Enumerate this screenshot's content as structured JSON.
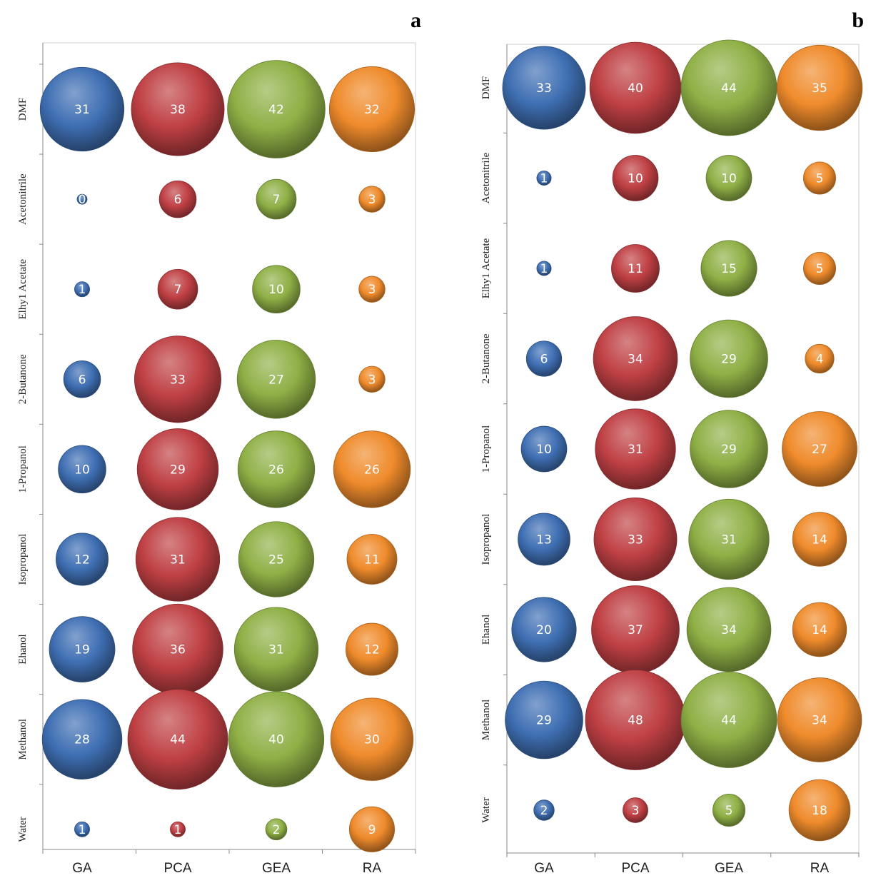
{
  "colors": {
    "GA": "#3f6fb3",
    "PCA": "#bf4044",
    "GEA": "#8fb046",
    "RA": "#ef8b2c"
  },
  "chart_data": [
    {
      "type": "bubble",
      "panel_label": "a",
      "categories": [
        "GA",
        "PCA",
        "GEA",
        "RA"
      ],
      "rows": [
        "DMF",
        "Acetonitrile",
        "Elhy1 Acetate",
        "2-Butanone",
        "1-Propanol",
        "Isopropanol",
        "Ehanol",
        "Methanol",
        "Water"
      ],
      "series": [
        {
          "name": "GA",
          "values": [
            31,
            0,
            1,
            6,
            10,
            12,
            19,
            28,
            1
          ]
        },
        {
          "name": "PCA",
          "values": [
            38,
            6,
            7,
            33,
            29,
            31,
            36,
            44,
            1
          ]
        },
        {
          "name": "GEA",
          "values": [
            42,
            7,
            10,
            27,
            26,
            25,
            31,
            40,
            2
          ]
        },
        {
          "name": "RA",
          "values": [
            32,
            3,
            3,
            3,
            26,
            11,
            12,
            30,
            9
          ]
        }
      ],
      "grid": false
    },
    {
      "type": "bubble",
      "panel_label": "b",
      "categories": [
        "GA",
        "PCA",
        "GEA",
        "RA"
      ],
      "rows": [
        "DMF",
        "Acetonitrile",
        "Elhy1 Acetate",
        "2-Butanone",
        "1-Propanol",
        "Isopropanol",
        "Ehanol",
        "Methanol",
        "Water"
      ],
      "series": [
        {
          "name": "GA",
          "values": [
            33,
            1,
            1,
            6,
            10,
            13,
            20,
            29,
            2
          ]
        },
        {
          "name": "PCA",
          "values": [
            40,
            10,
            11,
            34,
            31,
            33,
            37,
            48,
            3
          ]
        },
        {
          "name": "GEA",
          "values": [
            44,
            10,
            15,
            29,
            29,
            31,
            34,
            44,
            5
          ]
        },
        {
          "name": "RA",
          "values": [
            35,
            5,
            5,
            4,
            27,
            14,
            14,
            34,
            18
          ]
        }
      ],
      "grid": false
    }
  ]
}
